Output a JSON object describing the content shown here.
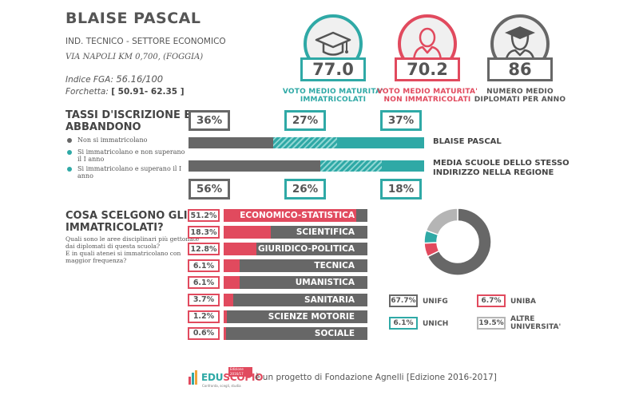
{
  "school": {
    "name": "BLAISE PASCAL",
    "type": "IND. TECNICO - SETTORE ECONOMICO",
    "address": "VIA NAPOLI KM 0,700, (FOGGIA)",
    "fga_label": "Indice FGA: ",
    "fga_value": "56.16/100",
    "range_label": "Forchetta: ",
    "range_value": "[ 50.91- 62.35 ]"
  },
  "scores": [
    {
      "value": "77.0",
      "label_line1": "VOTO MEDIO MATURITA'",
      "label_line2": "IMMATRICOLATI",
      "color": "#2fa9a6",
      "icon": "graduation-cap-icon"
    },
    {
      "value": "70.2",
      "label_line1": "VOTO MEDIO MATURITA'",
      "label_line2": "NON IMMATRICOLATI",
      "color": "#e14a5e",
      "icon": "person-icon"
    },
    {
      "value": "86",
      "label_line1": "NUMERO MEDIO",
      "label_line2": "DIPLOMATI PER ANNO",
      "color": "#676767",
      "icon": "graduate-person-icon"
    }
  ],
  "enrollment": {
    "title_line1": "TASSI D'ISCRIZIONE E",
    "title_line2": "ABBANDONO",
    "legend": [
      {
        "line1": "Non si immatricolano",
        "line2": "",
        "color": "#676767"
      },
      {
        "line1": "Si immatricolano e non superano",
        "line2": "il I anno",
        "color": "#2fa9a6"
      },
      {
        "line1": "Si immatricolano e superano il I",
        "line2": "anno",
        "color": "#2fa9a6"
      }
    ],
    "school_row": {
      "label_line1": "BLAISE PASCAL",
      "label_line2": "",
      "pcts": [
        "36%",
        "27%",
        "37%"
      ],
      "values": [
        36,
        27,
        37
      ]
    },
    "region_row": {
      "label_line1": "MEDIA SCUOLE DELLO STESSO",
      "label_line2": "INDIRIZZO NELLA REGIONE",
      "pcts": [
        "56%",
        "26%",
        "18%"
      ],
      "values": [
        56,
        26,
        18
      ]
    },
    "colors": {
      "none": "#676767",
      "dropout": "#2fa9a6",
      "pass": "#2fa9a6"
    }
  },
  "choices": {
    "title_line1": "COSA SCELGONO GLI",
    "title_line2": "IMMATRICOLATI?",
    "desc_line1": "Quali sono le aree disciplinari più gettonate",
    "desc_line2": "dai diplomati di questa scuola?",
    "desc_line3": "E in quali atenei si immatricolano con",
    "desc_line4": "maggior frequenza?",
    "items": [
      {
        "pct": "51.2%",
        "value": 51.2,
        "label": "ECONOMICO-STATISTICA"
      },
      {
        "pct": "18.3%",
        "value": 18.3,
        "label": "SCIENTIFICA"
      },
      {
        "pct": "12.8%",
        "value": 12.8,
        "label": "GIURIDICO-POLITICA"
      },
      {
        "pct": "6.1%",
        "value": 6.1,
        "label": "TECNICA"
      },
      {
        "pct": "6.1%",
        "value": 6.1,
        "label": "UMANISTICA"
      },
      {
        "pct": "3.7%",
        "value": 3.7,
        "label": "SANITARIA"
      },
      {
        "pct": "1.2%",
        "value": 1.2,
        "label": "SCIENZE MOTORIE"
      },
      {
        "pct": "0.6%",
        "value": 0.6,
        "label": "SOCIALE"
      }
    ],
    "bar_color": "#676767",
    "fill_color": "#e14a5e"
  },
  "universities": [
    {
      "pct": "67.7%",
      "value": 67.7,
      "line1": "UNIFG",
      "line2": "",
      "color": "#676767"
    },
    {
      "pct": "6.7%",
      "value": 6.7,
      "line1": "UNIBA",
      "line2": "",
      "color": "#e14a5e"
    },
    {
      "pct": "6.1%",
      "value": 6.1,
      "line1": "UNICH",
      "line2": "",
      "color": "#2fa9a6"
    },
    {
      "pct": "19.5%",
      "value": 19.5,
      "line1": "ALTRE",
      "line2": "UNIVERSITA'",
      "color": "#b5b5b5"
    }
  ],
  "footer": {
    "logo_edu": "EDU",
    "logo_scopio": "SCOPIO",
    "logo_badge": "Edizione 2016/17",
    "logo_tagline": "Confronta, scegli, studia",
    "text": "è un progetto di Fondazione Agnelli [Edizione 2016-2017]"
  }
}
